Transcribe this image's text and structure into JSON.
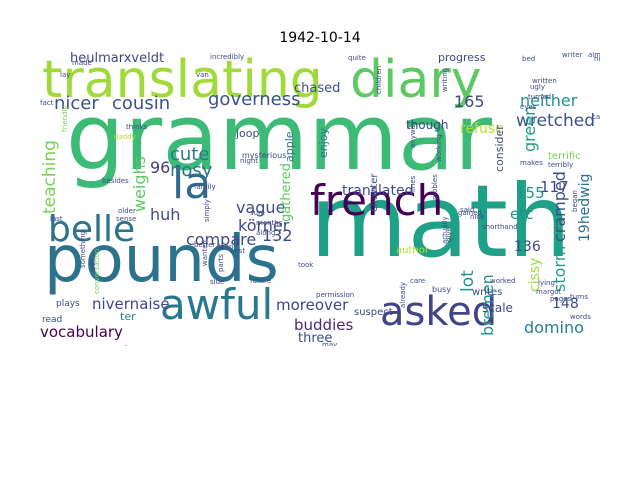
{
  "title": "1942-10-14",
  "words": [
    {
      "text": "grammar",
      "color": "#3bbb75"
    },
    {
      "text": "math",
      "color": "#1fa187"
    },
    {
      "text": "pounds",
      "color": "#2c728e"
    },
    {
      "text": "translating",
      "color": "#a0da39"
    },
    {
      "text": "diary",
      "color": "#5ec962"
    },
    {
      "text": "french",
      "color": "#440154"
    },
    {
      "text": "asked",
      "color": "#414487"
    },
    {
      "text": "awful",
      "color": "#2a788e"
    },
    {
      "text": "belle",
      "color": "#2c728e"
    },
    {
      "text": "la",
      "color": "#31688e"
    },
    {
      "text": "nicer",
      "color": "#3b528b"
    },
    {
      "text": "cousin",
      "color": "#3b528b"
    },
    {
      "text": "governess",
      "color": "#3b528b"
    },
    {
      "text": "neither",
      "color": "#21918c"
    },
    {
      "text": "wretched",
      "color": "#3b528b"
    },
    {
      "text": "165",
      "color": "#414487"
    },
    {
      "text": "heulmarxveldt",
      "color": "#414487"
    },
    {
      "text": "chased",
      "color": "#3b528b"
    },
    {
      "text": "teaching",
      "color": "#7ad151"
    },
    {
      "text": "weighs",
      "color": "#5ec962"
    },
    {
      "text": "cute",
      "color": "#2a788e"
    },
    {
      "text": "nosy",
      "color": "#2a788e"
    },
    {
      "text": "96",
      "color": "#443983"
    },
    {
      "text": "huh",
      "color": "#3e4a89"
    },
    {
      "text": "vague",
      "color": "#3e4a89"
    },
    {
      "text": "körner",
      "color": "#3e4a89"
    },
    {
      "text": "compare",
      "color": "#3e4a89"
    },
    {
      "text": "132",
      "color": "#3e4a89"
    },
    {
      "text": "gathered",
      "color": "#5ec962"
    },
    {
      "text": "translated",
      "color": "#3e4a89"
    },
    {
      "text": "lot",
      "color": "#21918c"
    },
    {
      "text": "bremen",
      "color": "#21918c"
    },
    {
      "text": "etc",
      "color": "#21918c"
    },
    {
      "text": "155",
      "color": "#21918c"
    },
    {
      "text": "117",
      "color": "#3e4a89"
    },
    {
      "text": "green",
      "color": "#1f9e89"
    },
    {
      "text": "cramped",
      "color": "#3e4a89"
    },
    {
      "text": "refuse",
      "color": "#b5de2b"
    },
    {
      "text": "storm",
      "color": "#1f9e89"
    },
    {
      "text": "136",
      "color": "#3e4a89"
    },
    {
      "text": "cissy",
      "color": "#a0da39"
    },
    {
      "text": "19hedwig",
      "color": "#2c728e"
    },
    {
      "text": "148",
      "color": "#3e4a89"
    },
    {
      "text": "nivernaise",
      "color": "#414487"
    },
    {
      "text": "moreover",
      "color": "#414487"
    },
    {
      "text": "vocabulary",
      "color": "#440154"
    },
    {
      "text": "buddies",
      "color": "#482878"
    },
    {
      "text": "domino",
      "color": "#26828e"
    },
    {
      "text": "three",
      "color": "#3e4a89"
    },
    {
      "text": "scale",
      "color": "#3e4a89"
    },
    {
      "text": "ter",
      "color": "#2a788e"
    },
    {
      "text": "though",
      "color": "#3e4a89"
    },
    {
      "text": "progress",
      "color": "#3e4a89"
    },
    {
      "text": "apple",
      "color": "#2c728e"
    },
    {
      "text": "enjoy",
      "color": "#2c728e"
    },
    {
      "text": "consider",
      "color": "#3e4a89"
    },
    {
      "text": "terrific",
      "color": "#7ad151"
    },
    {
      "text": "author",
      "color": "#b5de2b"
    },
    {
      "text": "joop",
      "color": "#3e4a89"
    },
    {
      "text": "chapter",
      "color": "#3e4a89"
    },
    {
      "text": "mysterious",
      "color": "#3e4a89"
    },
    {
      "text": "plays",
      "color": "#3e4a89"
    },
    {
      "text": "read",
      "color": "#3e4a89"
    },
    {
      "text": "suspect",
      "color": "#3e4a89"
    },
    {
      "text": "writes",
      "color": "#3e4a89"
    },
    {
      "text": "busy",
      "color": "#3e4a89"
    },
    {
      "text": "quite",
      "color": "#3e4a89"
    },
    {
      "text": "writer",
      "color": "#3e4a89"
    },
    {
      "text": "almost",
      "color": "#3e4a89"
    },
    {
      "text": "history",
      "color": "#3e4a89"
    },
    {
      "text": "bed",
      "color": "#3e4a89"
    },
    {
      "text": "incredibly",
      "color": "#3e4a89"
    },
    {
      "text": "made",
      "color": "#3e4a89"
    },
    {
      "text": "van",
      "color": "#3e4a89"
    },
    {
      "text": "lay",
      "color": "#3e4a89"
    },
    {
      "text": "fact",
      "color": "#3e4a89"
    },
    {
      "text": "daddy",
      "color": "#b5de2b"
    },
    {
      "text": "friendly",
      "color": "#7ad151"
    },
    {
      "text": "night",
      "color": "#3e4a89"
    },
    {
      "text": "family",
      "color": "#3e4a89"
    },
    {
      "text": "besides",
      "color": "#3e4a89"
    },
    {
      "text": "older",
      "color": "#3e4a89"
    },
    {
      "text": "sense",
      "color": "#3e4a89"
    },
    {
      "text": "last",
      "color": "#3e4a89"
    },
    {
      "text": "better",
      "color": "#3e4a89"
    },
    {
      "text": "daan",
      "color": "#3e4a89"
    },
    {
      "text": "best",
      "color": "#3e4a89"
    },
    {
      "text": "months",
      "color": "#3e4a89"
    },
    {
      "text": "sure",
      "color": "#3e4a89"
    },
    {
      "text": "simply",
      "color": "#3e4a89"
    },
    {
      "text": "along",
      "color": "#3e4a89"
    },
    {
      "text": "future",
      "color": "#3e4a89"
    },
    {
      "text": "side",
      "color": "#3e4a89"
    },
    {
      "text": "wanted",
      "color": "#3e4a89"
    },
    {
      "text": "parts",
      "color": "#3e4a89"
    },
    {
      "text": "well",
      "color": "#3e4a89"
    },
    {
      "text": "something",
      "color": "#3e4a89"
    },
    {
      "text": "conversation",
      "color": "#7ad151"
    },
    {
      "text": "margot",
      "color": "#3e4a89"
    },
    {
      "text": "pages",
      "color": "#3e4a89"
    },
    {
      "text": "lying",
      "color": "#3e4a89"
    },
    {
      "text": "turns",
      "color": "#3e4a89"
    },
    {
      "text": "words",
      "color": "#3e4a89"
    },
    {
      "text": "worked",
      "color": "#3e4a89"
    },
    {
      "text": "care",
      "color": "#3e4a89"
    },
    {
      "text": "may",
      "color": "#3e4a89"
    },
    {
      "text": "give",
      "color": "#3e4a89"
    },
    {
      "text": "said",
      "color": "#3e4a89"
    },
    {
      "text": "nice",
      "color": "#3e4a89"
    },
    {
      "text": "shorthand",
      "color": "#3e4a89"
    },
    {
      "text": "gained",
      "color": "#3e4a89"
    },
    {
      "text": "probles",
      "color": "#3e4a89"
    },
    {
      "text": "lines",
      "color": "#3e4a89"
    },
    {
      "text": "makes",
      "color": "#3e4a89"
    },
    {
      "text": "terribly",
      "color": "#3e4a89"
    },
    {
      "text": "began",
      "color": "#3e4a89"
    },
    {
      "text": "call",
      "color": "#3e4a89"
    },
    {
      "text": "like",
      "color": "#3e4a89"
    },
    {
      "text": "eyes",
      "color": "#3e4a89"
    },
    {
      "text": "turned",
      "color": "#3e4a89"
    },
    {
      "text": "ugly",
      "color": "#3e4a89"
    },
    {
      "text": "written",
      "color": "#3e4a89"
    },
    {
      "text": "writing",
      "color": "#3e4a89"
    },
    {
      "text": "children",
      "color": "#3e4a89"
    },
    {
      "text": "anyway",
      "color": "#3e4a89"
    },
    {
      "text": "working",
      "color": "#3e4a89"
    },
    {
      "text": "actually",
      "color": "#3e4a89"
    },
    {
      "text": "permission",
      "color": "#3e4a89"
    },
    {
      "text": "already",
      "color": "#3e4a89"
    },
    {
      "text": "fun",
      "color": "#3e4a89"
    },
    {
      "text": "took",
      "color": "#3e4a89"
    },
    {
      "text": "thinks",
      "color": "#3e4a89"
    }
  ]
}
